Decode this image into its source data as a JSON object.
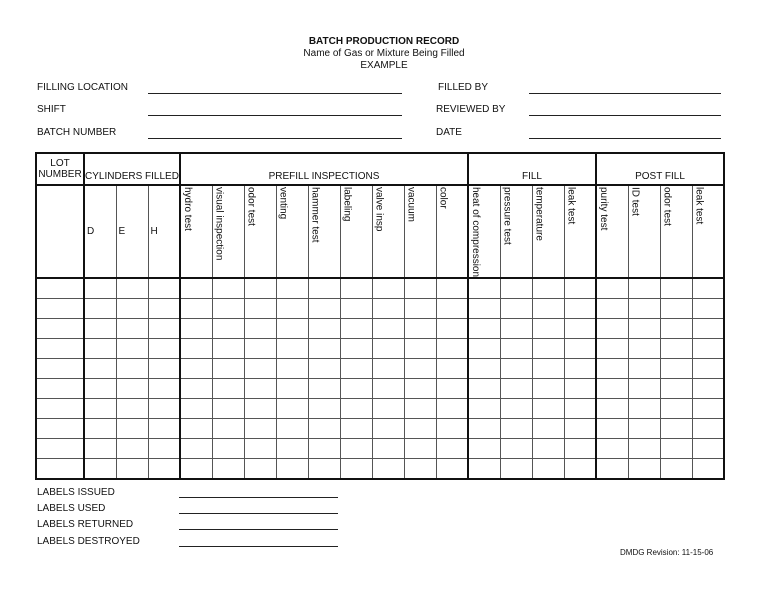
{
  "header": {
    "title": "BATCH PRODUCTION RECORD",
    "subtitle": "Name of Gas or Mixture Being Filled",
    "example": "EXAMPLE"
  },
  "fields": {
    "left": [
      {
        "label": "FILLING LOCATION",
        "value": ""
      },
      {
        "label": "SHIFT",
        "value": ""
      },
      {
        "label": "BATCH NUMBER",
        "value": ""
      }
    ],
    "right": [
      {
        "label": "FILLED BY",
        "value": ""
      },
      {
        "label": "REVIEWED BY",
        "value": ""
      },
      {
        "label": "DATE",
        "value": ""
      }
    ]
  },
  "table": {
    "groups": {
      "lot": "LOT NUMBER",
      "cylinders": "CYLINDERS FILLED",
      "prefill": "PREFILL INSPECTIONS",
      "fill": "FILL",
      "postfill": "POST FILL"
    },
    "cylinders": [
      "D",
      "E",
      "H"
    ],
    "prefill": [
      "hydro test",
      "visual inspection",
      "odor test",
      "venting",
      "hammer test",
      "labeling",
      "valve insp",
      "vacuum",
      "color"
    ],
    "fill": [
      "heat of compression",
      "pressure test",
      "temperature",
      "leak test"
    ],
    "postfill": [
      "purity test",
      "ID test",
      "odor test",
      "leak test"
    ],
    "row_count": 10
  },
  "labels": [
    {
      "label": "LABELS ISSUED",
      "value": ""
    },
    {
      "label": "LABELS USED",
      "value": ""
    },
    {
      "label": "LABELS RETURNED",
      "value": ""
    },
    {
      "label": "LABELS DESTROYED",
      "value": ""
    }
  ],
  "footer": {
    "revision": "DMDG Revision: 11-15-06"
  }
}
